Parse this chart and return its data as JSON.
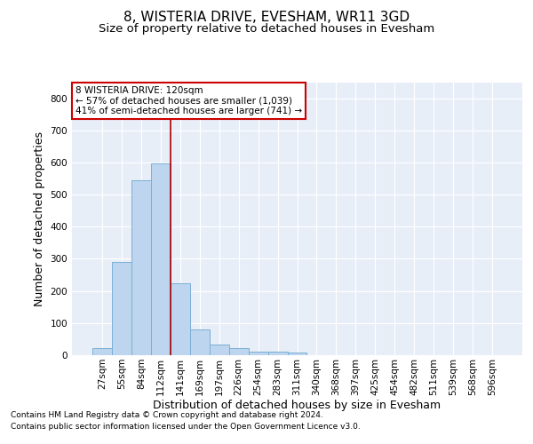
{
  "title1": "8, WISTERIA DRIVE, EVESHAM, WR11 3GD",
  "title2": "Size of property relative to detached houses in Evesham",
  "xlabel": "Distribution of detached houses by size in Evesham",
  "ylabel": "Number of detached properties",
  "categories": [
    "27sqm",
    "55sqm",
    "84sqm",
    "112sqm",
    "141sqm",
    "169sqm",
    "197sqm",
    "226sqm",
    "254sqm",
    "283sqm",
    "311sqm",
    "340sqm",
    "368sqm",
    "397sqm",
    "425sqm",
    "454sqm",
    "482sqm",
    "511sqm",
    "539sqm",
    "568sqm",
    "596sqm"
  ],
  "values": [
    22,
    290,
    545,
    597,
    223,
    80,
    33,
    22,
    12,
    10,
    7,
    0,
    0,
    0,
    0,
    0,
    0,
    0,
    0,
    0,
    0
  ],
  "bar_color": "#bdd5ee",
  "bar_edge_color": "#7aafd4",
  "vline_x": 3.5,
  "vline_color": "#aa0000",
  "annotation_text": "8 WISTERIA DRIVE: 120sqm\n← 57% of detached houses are smaller (1,039)\n41% of semi-detached houses are larger (741) →",
  "annotation_box_color": "#ffffff",
  "annotation_box_edge_color": "#cc0000",
  "ylim": [
    0,
    850
  ],
  "yticks": [
    0,
    100,
    200,
    300,
    400,
    500,
    600,
    700,
    800
  ],
  "bg_color": "#e8eef8",
  "grid_color": "#ffffff",
  "footer_line1": "Contains HM Land Registry data © Crown copyright and database right 2024.",
  "footer_line2": "Contains public sector information licensed under the Open Government Licence v3.0.",
  "title1_fontsize": 11,
  "title2_fontsize": 9.5,
  "tick_fontsize": 7.5,
  "ylabel_fontsize": 9,
  "xlabel_fontsize": 9,
  "annot_fontsize": 7.5,
  "footer_fontsize": 6.5
}
